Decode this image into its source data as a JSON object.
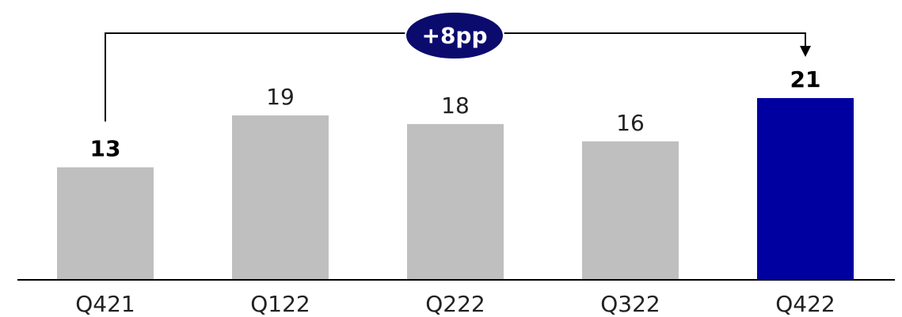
{
  "chart_data": {
    "type": "bar",
    "categories": [
      "Q421",
      "Q122",
      "Q222",
      "Q322",
      "Q422"
    ],
    "values": [
      13,
      19,
      18,
      16,
      21
    ],
    "value_labels": [
      "13",
      "19",
      "18",
      "16",
      "21"
    ],
    "bold_labels": [
      true,
      false,
      false,
      false,
      true
    ],
    "colors": [
      "#bfbfbf",
      "#bfbfbf",
      "#bfbfbf",
      "#bfbfbf",
      "#0000a0"
    ],
    "ylim": [
      0,
      26
    ],
    "grid": false,
    "annotation": {
      "text": "+8pp",
      "from_category": "Q421",
      "to_category": "Q422",
      "badge_color": "#0b0b6e"
    }
  }
}
